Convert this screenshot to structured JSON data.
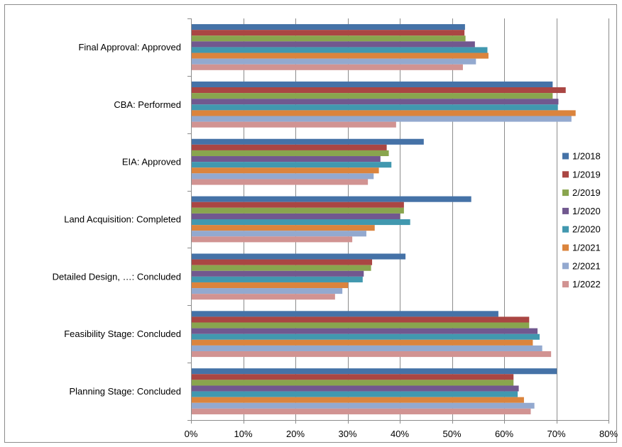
{
  "chart_data": {
    "type": "bar",
    "orientation": "horizontal",
    "categories": [
      "Final Approval: Approved",
      "CBA: Performed",
      "EIA: Approved",
      "Land Acquisition: Completed",
      "Detailed Design, …: Concluded",
      "Feasibility Stage: Concluded",
      "Planning Stage: Concluded"
    ],
    "series": [
      {
        "name": "1/2018",
        "color": "#4572A7",
        "values": [
          52.5,
          69.3,
          44.6,
          53.7,
          41.1,
          58.9,
          70.1
        ]
      },
      {
        "name": "1/2019",
        "color": "#AA4643",
        "values": [
          52.4,
          71.8,
          37.5,
          40.8,
          34.7,
          64.8,
          61.8
        ]
      },
      {
        "name": "2/2019",
        "color": "#89A54E",
        "values": [
          52.6,
          69.3,
          37.9,
          40.8,
          34.5,
          64.8,
          61.8
        ]
      },
      {
        "name": "1/2020",
        "color": "#71588F",
        "values": [
          54.4,
          70.4,
          36.3,
          40.0,
          33.1,
          66.4,
          62.8
        ]
      },
      {
        "name": "2/2020",
        "color": "#4198AF",
        "values": [
          56.8,
          70.3,
          38.4,
          42.0,
          32.9,
          66.8,
          62.6
        ]
      },
      {
        "name": "1/2021",
        "color": "#DB843D",
        "values": [
          57.0,
          73.7,
          36.0,
          35.2,
          30.1,
          65.5,
          63.8
        ]
      },
      {
        "name": "2/2021",
        "color": "#93A9CF",
        "values": [
          54.6,
          72.9,
          35.0,
          33.6,
          29.0,
          67.3,
          65.8
        ]
      },
      {
        "name": "1/2022",
        "color": "#D19392",
        "values": [
          52.1,
          39.3,
          33.9,
          30.9,
          27.6,
          69.0,
          65.1
        ]
      }
    ],
    "xlim": [
      0,
      80
    ],
    "x_ticks": [
      "0%",
      "10%",
      "20%",
      "30%",
      "40%",
      "50%",
      "60%",
      "70%",
      "80%"
    ],
    "grid": true,
    "legend_position": "right"
  }
}
